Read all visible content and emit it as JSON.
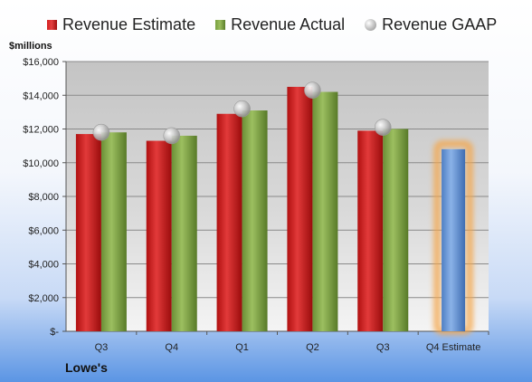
{
  "chart_data": {
    "type": "bar",
    "ylabel": "$millions",
    "company": "Lowe's",
    "categories": [
      "Q3",
      "Q4",
      "Q1",
      "Q2",
      "Q3",
      "Q4 Estimate"
    ],
    "ylim": [
      0,
      16000
    ],
    "yticks": [
      0,
      2000,
      4000,
      6000,
      8000,
      10000,
      12000,
      14000,
      16000
    ],
    "ytick_labels": [
      "$-",
      "$2,000",
      "$4,000",
      "$6,000",
      "$8,000",
      "$10,000",
      "$12,000",
      "$14,000",
      "$16,000"
    ],
    "grid": true,
    "legend_position": "top",
    "series": [
      {
        "name": "Revenue Estimate",
        "kind": "bar",
        "color": "#d42020",
        "values": [
          11700,
          11300,
          12900,
          14500,
          11900,
          null
        ]
      },
      {
        "name": "Revenue Actual",
        "kind": "bar",
        "color": "#8db04e",
        "values": [
          11800,
          11600,
          13100,
          14200,
          12000,
          null
        ]
      },
      {
        "name": "Revenue GAAP",
        "kind": "marker",
        "color": "#b0b0b0",
        "values": [
          11800,
          11600,
          13200,
          14300,
          12100,
          null
        ]
      },
      {
        "name": "Q4 Estimate",
        "kind": "highlight-bar",
        "color": "#6a98d8",
        "glow": "#f5a64a",
        "values": [
          null,
          null,
          null,
          null,
          null,
          10800
        ]
      }
    ]
  }
}
